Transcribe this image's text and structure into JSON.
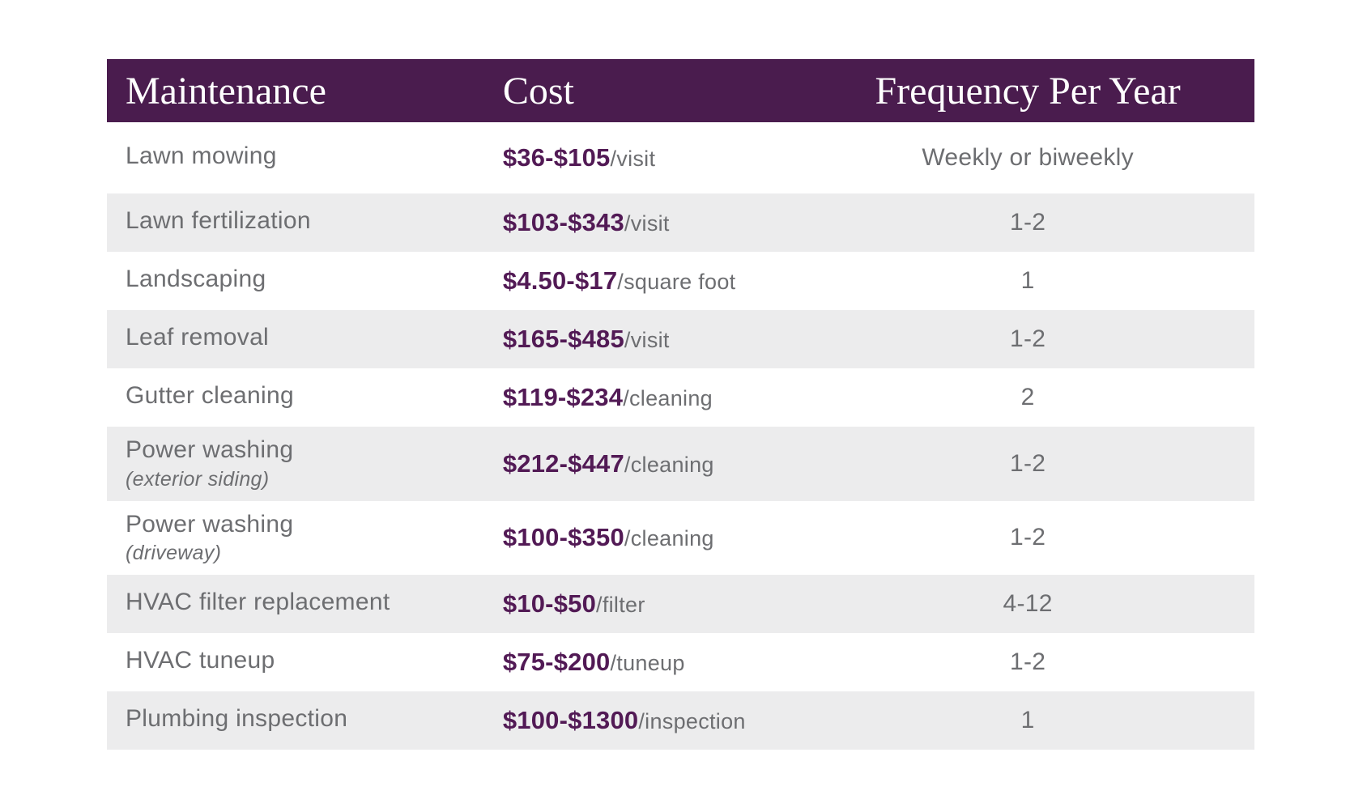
{
  "colors": {
    "page_bg": "#ffffff",
    "header_bg": "#4a1c4e",
    "header_text": "#ffffff",
    "cost_text": "#521a55",
    "body_text": "#6d6e71",
    "row_alt_bg": "#ececed"
  },
  "table": {
    "header": {
      "maintenance": "Maintenance",
      "cost": "Cost",
      "frequency": "Frequency Per Year"
    },
    "rows": [
      {
        "maintenance": "Lawn mowing",
        "subtitle": "",
        "cost": "$36-$105",
        "unit": "/visit",
        "frequency": "Weekly or biweekly"
      },
      {
        "maintenance": "Lawn fertilization",
        "subtitle": "",
        "cost": "$103-$343",
        "unit": "/visit",
        "frequency": "1-2"
      },
      {
        "maintenance": "Landscaping",
        "subtitle": "",
        "cost": "$4.50-$17",
        "unit": "/square foot",
        "frequency": "1"
      },
      {
        "maintenance": "Leaf removal",
        "subtitle": "",
        "cost": "$165-$485",
        "unit": "/visit",
        "frequency": "1-2"
      },
      {
        "maintenance": "Gutter cleaning",
        "subtitle": "",
        "cost": "$119-$234",
        "unit": "/cleaning",
        "frequency": "2"
      },
      {
        "maintenance": "Power washing",
        "subtitle": "(exterior siding)",
        "cost": "$212-$447",
        "unit": "/cleaning",
        "frequency": "1-2"
      },
      {
        "maintenance": "Power washing",
        "subtitle": "(driveway)",
        "cost": "$100-$350",
        "unit": "/cleaning",
        "frequency": "1-2"
      },
      {
        "maintenance": "HVAC filter replacement",
        "subtitle": "",
        "cost": "$10-$50",
        "unit": "/filter",
        "frequency": "4-12"
      },
      {
        "maintenance": "HVAC tuneup",
        "subtitle": "",
        "cost": "$75-$200",
        "unit": "/tuneup",
        "frequency": "1-2"
      },
      {
        "maintenance": "Plumbing inspection",
        "subtitle": "",
        "cost": "$100-$1300",
        "unit": "/inspection",
        "frequency": "1"
      }
    ]
  },
  "chart_data": {
    "type": "table",
    "title": "",
    "columns": [
      "Maintenance",
      "Cost",
      "Frequency Per Year"
    ],
    "rows": [
      [
        "Lawn mowing",
        "$36-$105/visit",
        "Weekly or biweekly"
      ],
      [
        "Lawn fertilization",
        "$103-$343/visit",
        "1-2"
      ],
      [
        "Landscaping",
        "$4.50-$17/square foot",
        "1"
      ],
      [
        "Leaf removal",
        "$165-$485/visit",
        "1-2"
      ],
      [
        "Gutter cleaning",
        "$119-$234/cleaning",
        "2"
      ],
      [
        "Power washing (exterior siding)",
        "$212-$447/cleaning",
        "1-2"
      ],
      [
        "Power washing (driveway)",
        "$100-$350/cleaning",
        "1-2"
      ],
      [
        "HVAC filter replacement",
        "$10-$50/filter",
        "4-12"
      ],
      [
        "HVAC tuneup",
        "$75-$200/tuneup",
        "1-2"
      ],
      [
        "Plumbing inspection",
        "$100-$1300/inspection",
        "1"
      ]
    ],
    "layout": {
      "header_style": "solid purple bar, white serif text",
      "row_striping": "white / light gray alternating",
      "frequency_alignment": "center"
    }
  }
}
